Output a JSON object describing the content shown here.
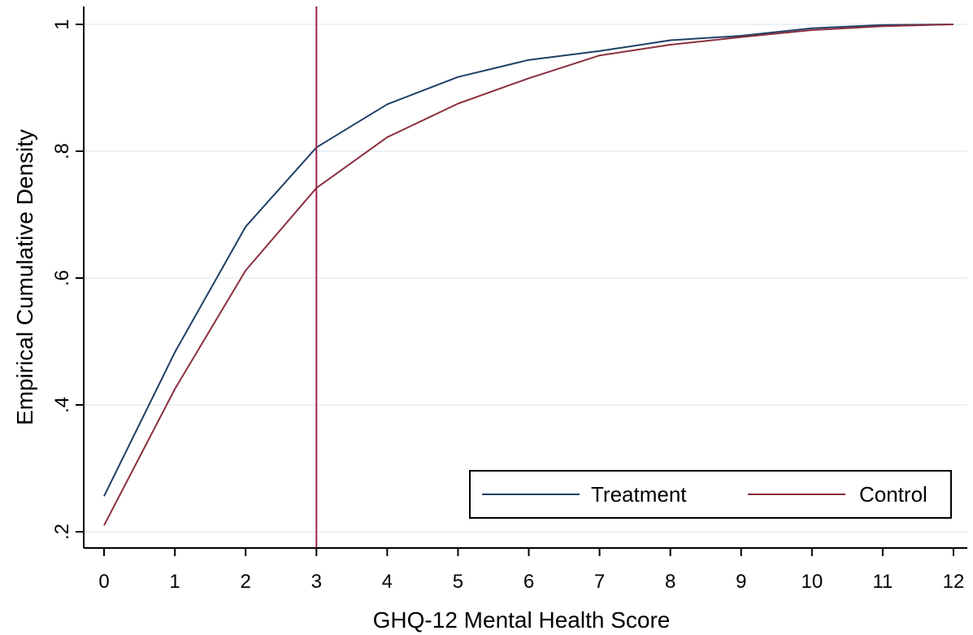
{
  "chart_data": {
    "type": "line",
    "title": "",
    "xlabel": "GHQ-12 Mental Health Score",
    "ylabel": "Empirical Cumulative Density",
    "x": [
      0,
      1,
      2,
      3,
      4,
      5,
      6,
      7,
      8,
      9,
      10,
      11,
      12
    ],
    "xlim": [
      0,
      12
    ],
    "ylim": [
      0.2,
      1.0
    ],
    "xticks": [
      "0",
      "1",
      "2",
      "3",
      "4",
      "5",
      "6",
      "7",
      "8",
      "9",
      "10",
      "11",
      "12"
    ],
    "yticks": [
      {
        "value": 0.2,
        "label": ".2"
      },
      {
        "value": 0.4,
        "label": ".4"
      },
      {
        "value": 0.6,
        "label": ".6"
      },
      {
        "value": 0.8,
        "label": ".8"
      },
      {
        "value": 1.0,
        "label": "1"
      }
    ],
    "grid": "horizontal",
    "series": [
      {
        "name": "Treatment",
        "color": "#1f3f66",
        "values": [
          0.256,
          0.483,
          0.681,
          0.806,
          0.874,
          0.917,
          0.944,
          0.958,
          0.975,
          0.982,
          0.994,
          0.999,
          1.0
        ]
      },
      {
        "name": "Control",
        "color": "#8b2f3e",
        "values": [
          0.21,
          0.425,
          0.612,
          0.742,
          0.822,
          0.875,
          0.915,
          0.951,
          0.968,
          0.98,
          0.991,
          0.997,
          1.0
        ]
      }
    ],
    "vline": {
      "x": 3,
      "color": "#a0234a"
    },
    "legend": {
      "position": "bottom-right",
      "columns": 2
    }
  }
}
